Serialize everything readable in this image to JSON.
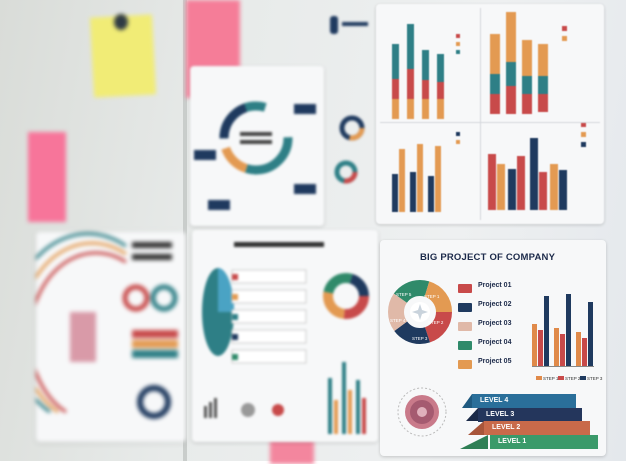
{
  "scene": {
    "title": "BIG PROJECT OF COMPANY",
    "projects": [
      {
        "label": "Project 01",
        "color": "#c84a4a"
      },
      {
        "label": "Project 02",
        "color": "#1f3a5f"
      },
      {
        "label": "Project 03",
        "color": "#e0b9a8"
      },
      {
        "label": "Project 04",
        "color": "#2f8a6a"
      },
      {
        "label": "Project 05",
        "color": "#e39a52"
      }
    ],
    "levels": [
      {
        "label": "LEVEL 4",
        "color": "#2a6f9a"
      },
      {
        "label": "LEVEL 3",
        "color": "#24365c"
      },
      {
        "label": "LEVEL 2",
        "color": "#c96a4a"
      },
      {
        "label": "LEVEL 1",
        "color": "#3a9a6a"
      }
    ],
    "step_legend": [
      "STEP 1",
      "STEP 2",
      "STEP 3"
    ],
    "step_colors": [
      "#e08a4a",
      "#c84a4a",
      "#1f3a5f"
    ],
    "wheel_steps": [
      "STEP 1",
      "STEP 2",
      "STEP 3",
      "STEP 4",
      "STEP 5"
    ],
    "colors": {
      "navy": "#1f3a5f",
      "red": "#c84a4a",
      "orange": "#e39a52",
      "teal": "#2e7f86",
      "green": "#2f8a6a",
      "sticky_yellow": "#f1ec76",
      "sticky_pink": "#f6779b"
    }
  }
}
